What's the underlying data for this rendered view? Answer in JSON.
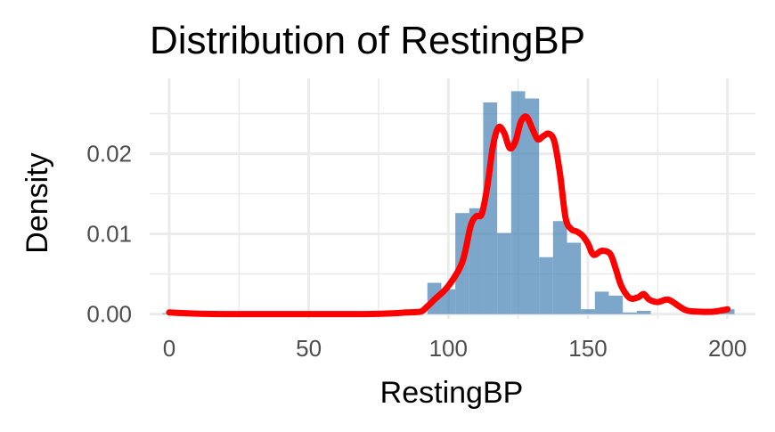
{
  "chart_data": {
    "type": "histogram",
    "title": "Distribution of RestingBP",
    "xlabel": "RestingBP",
    "ylabel": "Density",
    "xlim": [
      -7,
      210
    ],
    "ylim": [
      -0.0006,
      0.0294
    ],
    "x_ticks": [
      0,
      50,
      100,
      150,
      200
    ],
    "x_tick_labels": [
      "0",
      "50",
      "100",
      "150",
      "200"
    ],
    "y_ticks": [
      0.0,
      0.01,
      0.02
    ],
    "y_tick_labels": [
      "0.00",
      "0.01",
      "0.02"
    ],
    "grid": true,
    "colors": {
      "bars": "#4682b4",
      "density_line": "#ff0000",
      "grid": "#ebebeb"
    },
    "histogram": {
      "bin_width": 5,
      "bins": [
        {
          "start": -2.5,
          "end": 2.5,
          "density": 0.0001
        },
        {
          "start": 92.5,
          "end": 97.5,
          "density": 0.0039
        },
        {
          "start": 97.5,
          "end": 102.5,
          "density": 0.0031
        },
        {
          "start": 102.5,
          "end": 107.5,
          "density": 0.0126
        },
        {
          "start": 107.5,
          "end": 112.5,
          "density": 0.0132
        },
        {
          "start": 112.5,
          "end": 117.5,
          "density": 0.0264
        },
        {
          "start": 117.5,
          "end": 122.5,
          "density": 0.0101
        },
        {
          "start": 122.5,
          "end": 127.5,
          "density": 0.0278
        },
        {
          "start": 127.5,
          "end": 132.5,
          "density": 0.0269
        },
        {
          "start": 132.5,
          "end": 137.5,
          "density": 0.0071
        },
        {
          "start": 137.5,
          "end": 142.5,
          "density": 0.0116
        },
        {
          "start": 142.5,
          "end": 147.5,
          "density": 0.0089
        },
        {
          "start": 147.5,
          "end": 152.5,
          "density": 0.0006
        },
        {
          "start": 152.5,
          "end": 157.5,
          "density": 0.0028
        },
        {
          "start": 157.5,
          "end": 162.5,
          "density": 0.0023
        },
        {
          "start": 162.5,
          "end": 167.5,
          "density": 0.0002
        },
        {
          "start": 167.5,
          "end": 172.5,
          "density": 0.0004
        },
        {
          "start": 197.5,
          "end": 202.5,
          "density": 0.0006
        }
      ]
    },
    "density_curve": {
      "x": [
        0,
        10,
        20,
        30,
        40,
        50,
        60,
        70,
        80,
        85,
        90,
        92,
        95,
        100,
        105,
        108,
        110,
        112,
        114,
        116,
        118,
        120,
        122,
        124,
        126,
        128,
        130,
        132,
        134,
        136,
        138,
        140,
        142,
        144,
        146,
        148,
        150,
        152,
        155,
        158,
        160,
        162,
        165,
        168,
        170,
        172,
        175,
        178,
        180,
        185,
        190,
        195,
        200
      ],
      "y": [
        0.0002,
        5e-05,
        0.0,
        0.0,
        0.0,
        0.0,
        0.0,
        0.0,
        0.0001,
        0.0002,
        0.0003,
        0.0008,
        0.0018,
        0.0035,
        0.0065,
        0.011,
        0.0122,
        0.0125,
        0.016,
        0.021,
        0.0233,
        0.0226,
        0.0207,
        0.0215,
        0.024,
        0.0246,
        0.0232,
        0.0218,
        0.0222,
        0.0225,
        0.0215,
        0.0175,
        0.012,
        0.0106,
        0.0103,
        0.0098,
        0.0088,
        0.0074,
        0.0079,
        0.0075,
        0.0056,
        0.0035,
        0.002,
        0.0021,
        0.0025,
        0.0018,
        0.0015,
        0.0018,
        0.0016,
        0.0005,
        0.0003,
        0.0003,
        0.0006
      ]
    }
  }
}
